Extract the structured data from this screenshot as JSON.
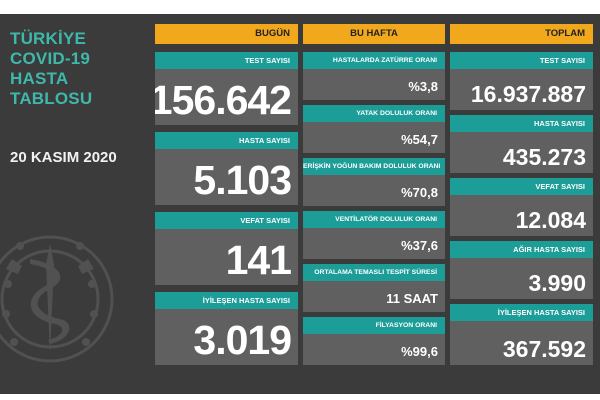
{
  "title_lines": [
    "TÜRKİYE",
    "COVID-19",
    "HASTA",
    "TABLOSU"
  ],
  "date": "20 KASIM 2020",
  "emblem": "ministry-of-health-emblem",
  "colors": {
    "background": "#3a3b3a",
    "header": "#f2a81d",
    "label": "#1d9d98",
    "card": "#5f605f",
    "title": "#3fb8ac"
  },
  "today": {
    "header": "BUGÜN",
    "items": [
      {
        "label": "TEST SAYISI",
        "value": "156.642"
      },
      {
        "label": "HASTA SAYISI",
        "value": "5.103"
      },
      {
        "label": "VEFAT SAYISI",
        "value": "141"
      },
      {
        "label": "İYİLEŞEN HASTA SAYISI",
        "value": "3.019"
      }
    ]
  },
  "week": {
    "header": "BU HAFTA",
    "items": [
      {
        "label": "HASTALARDA ZATÜRRE ORANI",
        "value": "%3,8"
      },
      {
        "label": "YATAK DOLULUK ORANI",
        "value": "%54,7"
      },
      {
        "label": "ERİŞKİN YOĞUN BAKIM DOLULUK ORANI",
        "value": "%70,8"
      },
      {
        "label": "VENTİLATÖR DOLULUK ORANI",
        "value": "%37,6"
      },
      {
        "label": "ORTALAMA TEMASLI TESPİT SÜRESİ",
        "value": "11 SAAT"
      },
      {
        "label": "FİLYASYON ORANI",
        "value": "%99,6"
      }
    ]
  },
  "total": {
    "header": "TOPLAM",
    "items": [
      {
        "label": "TEST SAYISI",
        "value": "16.937.887"
      },
      {
        "label": "HASTA SAYISI",
        "value": "435.273"
      },
      {
        "label": "VEFAT SAYISI",
        "value": "12.084"
      },
      {
        "label": "AĞIR HASTA SAYISI",
        "value": "3.990"
      },
      {
        "label": "İYİLEŞEN HASTA SAYISI",
        "value": "367.592"
      }
    ]
  }
}
